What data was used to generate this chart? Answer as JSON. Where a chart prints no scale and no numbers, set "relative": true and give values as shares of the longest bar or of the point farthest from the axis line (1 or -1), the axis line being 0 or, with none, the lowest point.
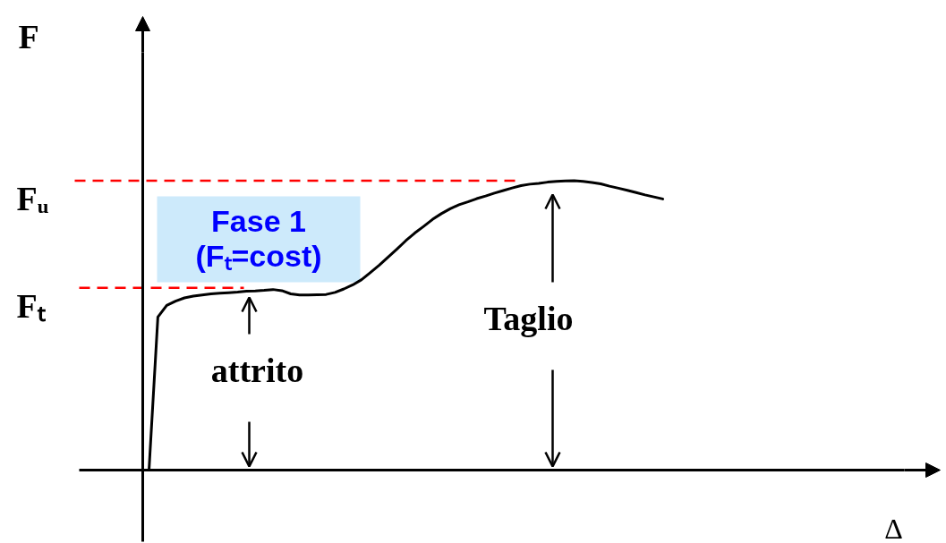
{
  "chart_data": {
    "type": "line",
    "relative": true,
    "ylabel": "F",
    "grid": false,
    "categories": [
      null,
      null,
      null,
      null,
      null,
      null,
      null,
      null,
      null,
      null,
      null,
      null,
      null,
      null,
      null,
      null,
      null,
      null,
      null,
      null,
      null,
      null,
      null,
      null,
      null,
      null,
      null,
      null,
      null,
      null,
      null,
      null,
      null,
      null,
      null,
      null,
      null,
      null,
      null,
      null,
      null,
      null,
      null,
      null,
      null,
      null,
      null,
      null,
      null,
      null,
      null,
      null,
      null,
      null,
      null,
      null,
      null,
      null,
      null
    ],
    "series": [
      {
        "color": "#000000",
        "values": [
          0,
          0.529,
          0.569,
          0.584,
          0.595,
          0.601,
          0.605,
          0.609,
          0.611,
          0.613,
          0.615,
          0.618,
          0.619,
          0.621,
          0.624,
          0.62,
          0.609,
          0.605,
          0.605,
          0.606,
          0.607,
          0.614,
          0.626,
          0.64,
          0.658,
          0.683,
          0.708,
          0.736,
          0.764,
          0.793,
          0.819,
          0.842,
          0.866,
          0.886,
          0.903,
          0.917,
          0.927,
          0.938,
          0.947,
          0.957,
          0.966,
          0.975,
          0.983,
          0.988,
          0.991,
          0.995,
          0.998,
          0.999,
          1,
          0.998,
          0.994,
          0.989,
          0.981,
          0.974,
          0.967,
          0.959,
          0.951,
          0.944,
          0.937
        ]
      }
    ],
    "ref_lines": [
      {
        "axis": "y",
        "value": 1,
        "label": "Fᵤ",
        "color": "#ff0000",
        "line_style": "dashed"
      },
      {
        "axis": "y",
        "value": 0.63,
        "label": "Fₜ",
        "color": "#ff0000",
        "line_style": "dashed"
      }
    ],
    "annotations": [
      "Fase 1\n(Fₜ=cost)",
      "attrito",
      "Taglio",
      "Δ"
    ]
  }
}
